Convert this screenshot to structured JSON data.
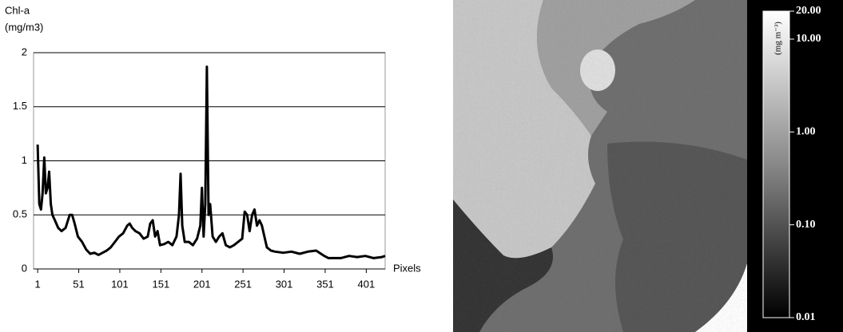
{
  "chart_data": [
    {
      "type": "line",
      "y_label": [
        "Chl-a",
        "(mg/m3)"
      ],
      "x_label": "Pixels",
      "xlim": [
        -4,
        424
      ],
      "ylim": [
        0,
        2
      ],
      "xticks": [
        1,
        51,
        101,
        151,
        201,
        251,
        301,
        351,
        401
      ],
      "yticks": [
        0,
        0.5,
        1,
        1.5,
        2
      ],
      "grid": true,
      "series": [
        {
          "color": "#000000",
          "x": [
            1,
            3,
            5,
            7,
            9,
            11,
            13,
            15,
            17,
            19,
            22,
            26,
            30,
            35,
            40,
            43,
            46,
            50,
            55,
            60,
            65,
            70,
            75,
            80,
            85,
            90,
            95,
            100,
            105,
            110,
            113,
            116,
            120,
            125,
            130,
            135,
            138,
            141,
            144,
            147,
            150,
            155,
            160,
            165,
            170,
            173,
            175,
            177,
            180,
            185,
            190,
            195,
            199,
            201,
            203,
            205,
            207,
            209,
            211,
            214,
            218,
            222,
            226,
            230,
            235,
            240,
            245,
            250,
            253,
            256,
            259,
            262,
            265,
            268,
            271,
            274,
            277,
            280,
            285,
            290,
            300,
            310,
            320,
            330,
            340,
            350,
            355,
            360,
            370,
            380,
            390,
            400,
            410,
            420,
            424
          ],
          "values": [
            1.15,
            0.6,
            0.55,
            0.7,
            1.03,
            0.7,
            0.75,
            0.9,
            0.6,
            0.5,
            0.45,
            0.38,
            0.35,
            0.38,
            0.5,
            0.5,
            0.42,
            0.3,
            0.25,
            0.18,
            0.14,
            0.15,
            0.13,
            0.15,
            0.17,
            0.2,
            0.25,
            0.3,
            0.33,
            0.4,
            0.42,
            0.38,
            0.35,
            0.33,
            0.28,
            0.3,
            0.42,
            0.45,
            0.3,
            0.35,
            0.22,
            0.23,
            0.25,
            0.22,
            0.3,
            0.5,
            0.88,
            0.4,
            0.25,
            0.25,
            0.22,
            0.28,
            0.4,
            0.75,
            0.3,
            0.6,
            1.87,
            0.5,
            0.6,
            0.3,
            0.25,
            0.3,
            0.33,
            0.22,
            0.2,
            0.22,
            0.25,
            0.28,
            0.53,
            0.5,
            0.35,
            0.5,
            0.55,
            0.4,
            0.45,
            0.4,
            0.3,
            0.2,
            0.17,
            0.16,
            0.15,
            0.16,
            0.14,
            0.16,
            0.17,
            0.12,
            0.1,
            0.1,
            0.1,
            0.12,
            0.11,
            0.12,
            0.1,
            0.11,
            0.12
          ]
        }
      ]
    },
    {
      "type": "colorbar",
      "label": "(mg m⁻³)",
      "log_scale": true,
      "lim": [
        0.01,
        20
      ],
      "ticks": [
        {
          "value": 20,
          "label": "20.00"
        },
        {
          "value": 10,
          "label": "10.00"
        },
        {
          "value": 1,
          "label": "1.00"
        },
        {
          "value": 0.1,
          "label": "0.10"
        },
        {
          "value": 0.01,
          "label": "0.01"
        }
      ]
    }
  ]
}
